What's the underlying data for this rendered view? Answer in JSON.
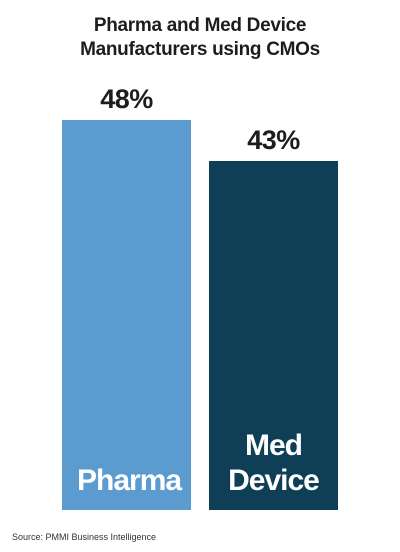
{
  "chart_data": {
    "type": "bar",
    "title": "Pharma and Med Device Manufacturers using CMOs",
    "categories": [
      "Pharma",
      "Med Device"
    ],
    "values": [
      48,
      43
    ],
    "value_labels": [
      "48%",
      "43%"
    ],
    "colors": [
      "#5b9bd0",
      "#0e3f57"
    ],
    "source": "Source: PMMI Business Intelligence"
  }
}
